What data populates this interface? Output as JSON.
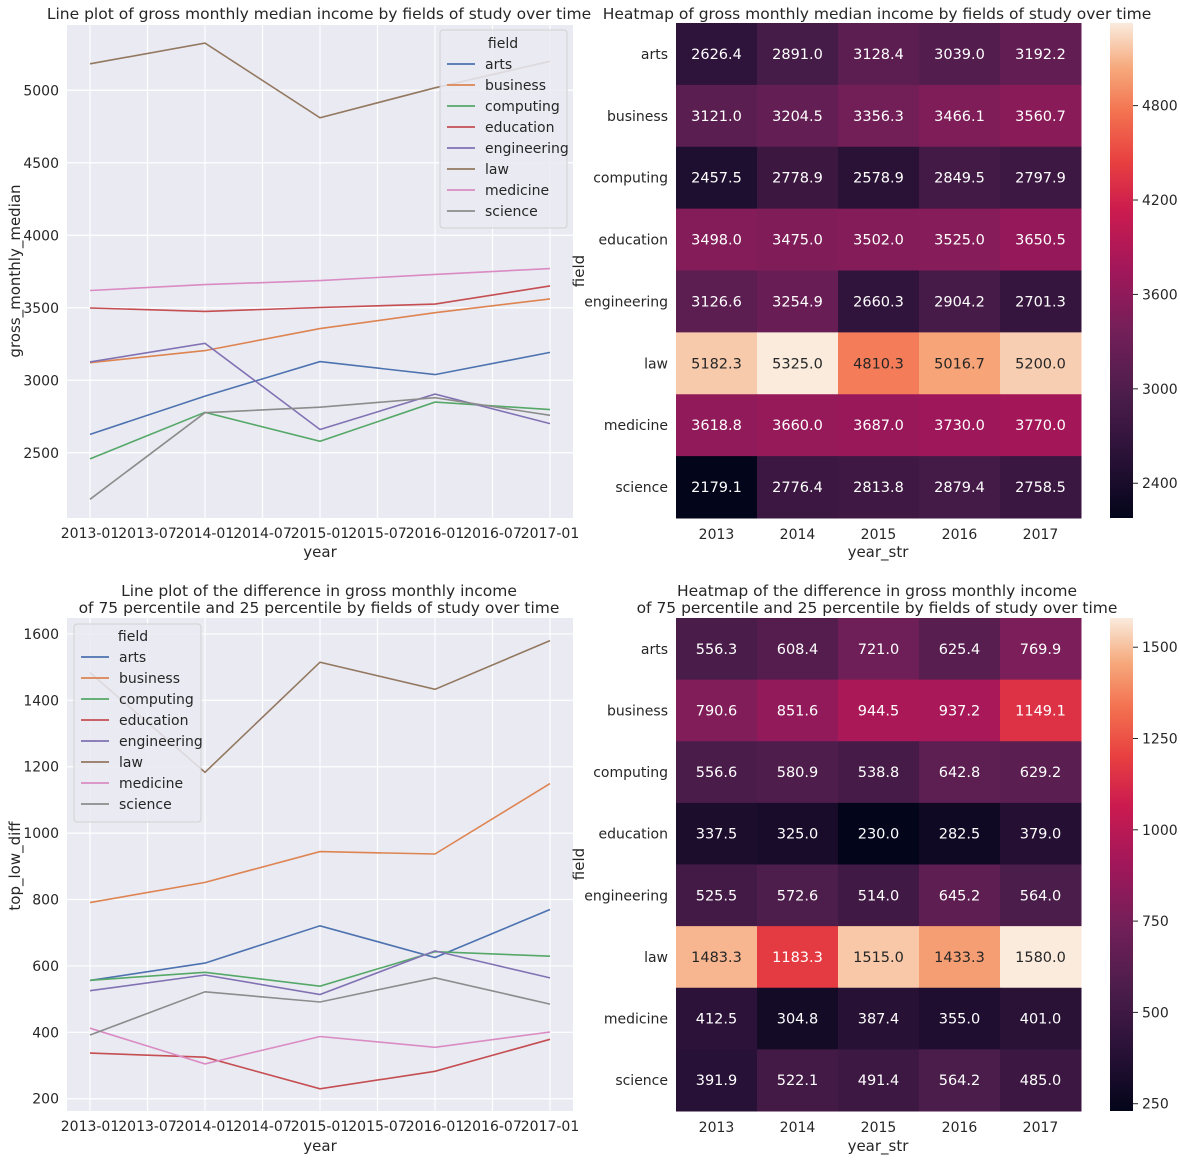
{
  "charts": [
    {
      "title_lines": [
        "Line plot of gross monthly median income by fields of study over time"
      ],
      "xlabel": "year",
      "ylabel": "gross_monthly_median",
      "legend_title": "field"
    },
    {
      "title_lines": [
        "Heatmap of gross monthly median income by fields of study over time"
      ],
      "xlabel": "year_str",
      "ylabel": "field"
    },
    {
      "title_lines": [
        "Line plot of the difference in gross monthly income",
        "of 75 percentile and 25 percentile by fields of study over time"
      ],
      "xlabel": "year",
      "ylabel": "top_low_diff",
      "legend_title": "field"
    },
    {
      "title_lines": [
        "Heatmap of the difference in gross monthly income",
        "of 75 percentile and 25 percentile by fields of study over time"
      ],
      "xlabel": "year_str",
      "ylabel": "field"
    }
  ],
  "chart_data": [
    {
      "type": "line",
      "title": "Line plot of gross monthly median income by fields of study over time",
      "xlabel": "year",
      "ylabel": "gross_monthly_median",
      "x": [
        "2013-01",
        "2014-01",
        "2015-01",
        "2016-01",
        "2017-01"
      ],
      "x_ticks": [
        "2013-01",
        "2013-07",
        "2014-01",
        "2014-07",
        "2015-01",
        "2015-07",
        "2016-01",
        "2016-07",
        "2017-01"
      ],
      "ylim": [
        2050,
        5450
      ],
      "y_ticks": [
        2500,
        3000,
        3500,
        4000,
        4500,
        5000
      ],
      "grid": true,
      "legend_title": "field",
      "legend_position": "top-right",
      "series": [
        {
          "name": "arts",
          "color": "#4c72b0",
          "values": [
            2626.4,
            2891.0,
            3128.4,
            3039.0,
            3192.2
          ]
        },
        {
          "name": "business",
          "color": "#dd8452",
          "values": [
            3121.0,
            3204.5,
            3356.3,
            3466.1,
            3560.7
          ]
        },
        {
          "name": "computing",
          "color": "#55a868",
          "values": [
            2457.5,
            2778.9,
            2578.9,
            2849.5,
            2797.9
          ]
        },
        {
          "name": "education",
          "color": "#c44e52",
          "values": [
            3498.0,
            3475.0,
            3502.0,
            3525.0,
            3650.5
          ]
        },
        {
          "name": "engineering",
          "color": "#8172b3",
          "values": [
            3126.6,
            3254.9,
            2660.3,
            2904.2,
            2701.3
          ]
        },
        {
          "name": "law",
          "color": "#937860",
          "values": [
            5182.3,
            5325.0,
            4810.3,
            5016.7,
            5200.0
          ]
        },
        {
          "name": "medicine",
          "color": "#da8bc3",
          "values": [
            3618.8,
            3660.0,
            3687.0,
            3730.0,
            3770.0
          ]
        },
        {
          "name": "science",
          "color": "#8c8c8c",
          "values": [
            2179.1,
            2776.4,
            2813.8,
            2879.4,
            2758.5
          ]
        }
      ]
    },
    {
      "type": "heatmap",
      "title": "Heatmap of gross monthly median income by fields of study over time",
      "xlabel": "year_str",
      "ylabel": "field",
      "columns": [
        "2013",
        "2014",
        "2015",
        "2016",
        "2017"
      ],
      "rows": [
        "arts",
        "business",
        "computing",
        "education",
        "engineering",
        "law",
        "medicine",
        "science"
      ],
      "values": [
        [
          2626.4,
          2891.0,
          3128.4,
          3039.0,
          3192.2
        ],
        [
          3121.0,
          3204.5,
          3356.3,
          3466.1,
          3560.7
        ],
        [
          2457.5,
          2778.9,
          2578.9,
          2849.5,
          2797.9
        ],
        [
          3498.0,
          3475.0,
          3502.0,
          3525.0,
          3650.5
        ],
        [
          3126.6,
          3254.9,
          2660.3,
          2904.2,
          2701.3
        ],
        [
          5182.3,
          5325.0,
          4810.3,
          5016.7,
          5200.0
        ],
        [
          3618.8,
          3660.0,
          3687.0,
          3730.0,
          3770.0
        ],
        [
          2179.1,
          2776.4,
          2813.8,
          2879.4,
          2758.5
        ]
      ],
      "cell_labels": [
        [
          "2626.4",
          "2891.0",
          "3128.4",
          "3039.0",
          "3192.2"
        ],
        [
          "3121.0",
          "3204.5",
          "3356.3",
          "3466.1",
          "3560.7"
        ],
        [
          "2457.5",
          "2778.9",
          "2578.9",
          "2849.5",
          "2797.9"
        ],
        [
          "3498.0",
          "3475.0",
          "3502.0",
          "3525.0",
          "3650.5"
        ],
        [
          "3126.6",
          "3254.9",
          "2660.3",
          "2904.2",
          "2701.3"
        ],
        [
          "5182.3",
          "5325.0",
          "4810.3",
          "5016.7",
          "5200.0"
        ],
        [
          "3618.8",
          "3660.0",
          "3687.0",
          "3730.0",
          "3770.0"
        ],
        [
          "2179.1",
          "2776.4",
          "2813.8",
          "2879.4",
          "2758.5"
        ]
      ],
      "colorbar_ticks": [
        2400,
        3000,
        3600,
        4200,
        4800
      ],
      "colormap": "rocket",
      "vmin": 2179.1,
      "vmax": 5325.0
    },
    {
      "type": "line",
      "title": "Line plot of the difference in gross monthly income of 75 percentile and 25 percentile by fields of study over time",
      "xlabel": "year",
      "ylabel": "top_low_diff",
      "x": [
        "2013-01",
        "2014-01",
        "2015-01",
        "2016-01",
        "2017-01"
      ],
      "x_ticks": [
        "2013-01",
        "2013-07",
        "2014-01",
        "2014-07",
        "2015-01",
        "2015-07",
        "2016-01",
        "2016-07",
        "2017-01"
      ],
      "ylim": [
        163,
        1648
      ],
      "y_ticks": [
        200,
        400,
        600,
        800,
        1000,
        1200,
        1400,
        1600
      ],
      "grid": true,
      "legend_title": "field",
      "legend_position": "top-left",
      "series": [
        {
          "name": "arts",
          "color": "#4c72b0",
          "values": [
            556.3,
            608.4,
            721.0,
            625.4,
            769.9
          ]
        },
        {
          "name": "business",
          "color": "#dd8452",
          "values": [
            790.6,
            851.6,
            944.5,
            937.2,
            1149.1
          ]
        },
        {
          "name": "computing",
          "color": "#55a868",
          "values": [
            556.6,
            580.9,
            538.8,
            642.8,
            629.2
          ]
        },
        {
          "name": "education",
          "color": "#c44e52",
          "values": [
            337.5,
            325.0,
            230.0,
            282.5,
            379.0
          ]
        },
        {
          "name": "engineering",
          "color": "#8172b3",
          "values": [
            525.5,
            572.6,
            514.0,
            645.2,
            564.0
          ]
        },
        {
          "name": "law",
          "color": "#937860",
          "values": [
            1483.3,
            1183.3,
            1515.0,
            1433.3,
            1580.0
          ]
        },
        {
          "name": "medicine",
          "color": "#da8bc3",
          "values": [
            412.5,
            304.8,
            387.4,
            355.0,
            401.0
          ]
        },
        {
          "name": "science",
          "color": "#8c8c8c",
          "values": [
            391.9,
            522.1,
            491.4,
            564.2,
            485.0
          ]
        }
      ]
    },
    {
      "type": "heatmap",
      "title": "Heatmap of the difference in gross monthly income of 75 percentile and 25 percentile by fields of study over time",
      "xlabel": "year_str",
      "ylabel": "field",
      "columns": [
        "2013",
        "2014",
        "2015",
        "2016",
        "2017"
      ],
      "rows": [
        "arts",
        "business",
        "computing",
        "education",
        "engineering",
        "law",
        "medicine",
        "science"
      ],
      "values": [
        [
          556.3,
          608.4,
          721.0,
          625.4,
          769.9
        ],
        [
          790.6,
          851.6,
          944.5,
          937.2,
          1149.1
        ],
        [
          556.6,
          580.9,
          538.8,
          642.8,
          629.2
        ],
        [
          337.5,
          325.0,
          230.0,
          282.5,
          379.0
        ],
        [
          525.5,
          572.6,
          514.0,
          645.2,
          564.0
        ],
        [
          1483.3,
          1183.3,
          1515.0,
          1433.3,
          1580.0
        ],
        [
          412.5,
          304.8,
          387.4,
          355.0,
          401.0
        ],
        [
          391.9,
          522.1,
          491.4,
          564.2,
          485.0
        ]
      ],
      "cell_labels": [
        [
          "556.3",
          "608.4",
          "721.0",
          "625.4",
          "769.9"
        ],
        [
          "790.6",
          "851.6",
          "944.5",
          "937.2",
          "1149.1"
        ],
        [
          "556.6",
          "580.9",
          "538.8",
          "642.8",
          "629.2"
        ],
        [
          "337.5",
          "325.0",
          "230.0",
          "282.5",
          "379.0"
        ],
        [
          "525.5",
          "572.6",
          "514.0",
          "645.2",
          "564.0"
        ],
        [
          "1483.3",
          "1183.3",
          "1515.0",
          "1433.3",
          "1580.0"
        ],
        [
          "412.5",
          "304.8",
          "387.4",
          "355.0",
          "401.0"
        ],
        [
          "391.9",
          "522.1",
          "491.4",
          "564.2",
          "485.0"
        ]
      ],
      "colorbar_ticks": [
        250,
        500,
        750,
        1000,
        1250,
        1500
      ],
      "colormap": "rocket",
      "vmin": 230.0,
      "vmax": 1580.0
    }
  ]
}
